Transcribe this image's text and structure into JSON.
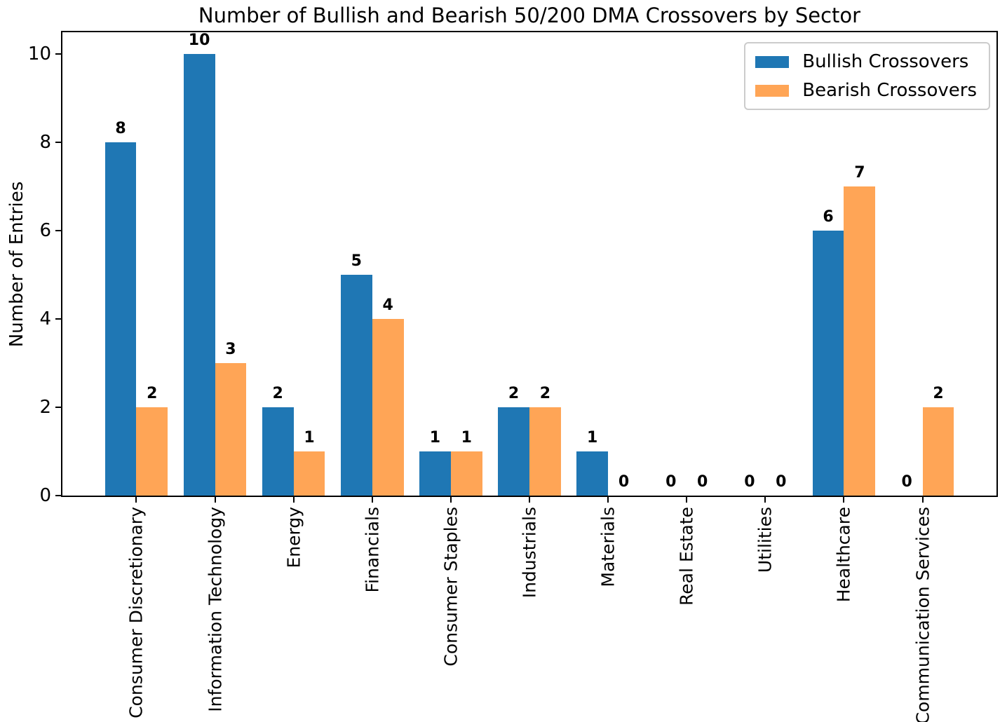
{
  "chart_data": {
    "type": "bar",
    "title": "Number of Bullish and Bearish 50/200 DMA Crossovers by Sector",
    "ylabel": "Number of Entries",
    "xlabel": "",
    "categories": [
      "Consumer Discretionary",
      "Information Technology",
      "Energy",
      "Financials",
      "Consumer Staples",
      "Industrials",
      "Materials",
      "Real Estate",
      "Utilities",
      "Healthcare",
      "Communication Services"
    ],
    "series": [
      {
        "name": "Bullish Crossovers",
        "color": "#1f77b4",
        "values": [
          8,
          10,
          2,
          5,
          1,
          2,
          1,
          0,
          0,
          6,
          0
        ]
      },
      {
        "name": "Bearish Crossovers",
        "color": "#ffa556",
        "values": [
          2,
          3,
          1,
          4,
          1,
          2,
          0,
          0,
          0,
          7,
          2
        ]
      }
    ],
    "yticks": [
      0,
      2,
      4,
      6,
      8,
      10
    ],
    "ylim": [
      0,
      10.5
    ],
    "grid": false,
    "legend_position": "upper right",
    "value_labels": true,
    "bar_width_units": 0.4,
    "x_edge_margin_units": 0.94,
    "tick_color": "#000000",
    "spine_color": "#000000"
  }
}
